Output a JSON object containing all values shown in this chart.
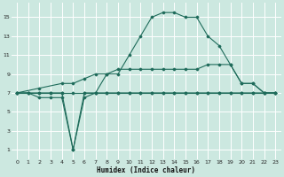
{
  "xlabel": "Humidex (Indice chaleur)",
  "bg_color": "#cce8e0",
  "grid_color": "#ffffff",
  "line_color": "#1e6b5a",
  "line1": {
    "x": [
      0,
      1,
      2,
      3,
      4,
      5,
      6,
      7,
      8,
      9,
      10,
      11,
      12,
      13,
      14,
      15,
      16,
      17,
      18,
      19,
      20,
      21,
      22,
      23
    ],
    "y": [
      7,
      7,
      7,
      7,
      7,
      7,
      7,
      7,
      7,
      7,
      7,
      7,
      7,
      7,
      7,
      7,
      7,
      7,
      7,
      7,
      7,
      7,
      7,
      7
    ]
  },
  "line2": {
    "x": [
      0,
      1,
      2,
      3,
      4,
      5,
      6,
      7,
      8,
      9,
      10,
      11,
      12,
      13,
      14,
      15,
      16,
      17,
      18,
      19,
      20,
      21,
      22,
      23
    ],
    "y": [
      7,
      7,
      6.5,
      6.5,
      6.5,
      1,
      6.5,
      7,
      7,
      7,
      7,
      7,
      7,
      7,
      7,
      7,
      7,
      7,
      7,
      7,
      7,
      7,
      7,
      7
    ]
  },
  "line3": {
    "x": [
      0,
      2,
      4,
      5,
      6,
      7,
      8,
      9,
      10,
      11,
      12,
      13,
      14,
      15,
      16,
      17,
      18,
      19,
      20,
      21,
      22,
      23
    ],
    "y": [
      7,
      7.5,
      8,
      8,
      8.5,
      9,
      9,
      9.5,
      9.5,
      9.5,
      9.5,
      9.5,
      9.5,
      9.5,
      9.5,
      10,
      10,
      10,
      8,
      8,
      7,
      7
    ]
  },
  "line4": {
    "x": [
      0,
      1,
      2,
      3,
      4,
      5,
      6,
      7,
      8,
      9,
      10,
      11,
      12,
      13,
      14,
      15,
      16,
      17,
      18,
      19,
      20,
      21,
      22,
      23
    ],
    "y": [
      7,
      7,
      7,
      7,
      7,
      1,
      7,
      7,
      9,
      9,
      11,
      13,
      15,
      15.5,
      15.5,
      15,
      15,
      13,
      12,
      10,
      8,
      8,
      7,
      7
    ]
  },
  "xlim": [
    -0.5,
    23.5
  ],
  "ylim": [
    0,
    16.5
  ],
  "yticks": [
    1,
    3,
    5,
    7,
    9,
    11,
    13,
    15
  ],
  "xticks": [
    0,
    1,
    2,
    3,
    4,
    5,
    6,
    7,
    8,
    9,
    10,
    11,
    12,
    13,
    14,
    15,
    16,
    17,
    18,
    19,
    20,
    21,
    22,
    23
  ]
}
